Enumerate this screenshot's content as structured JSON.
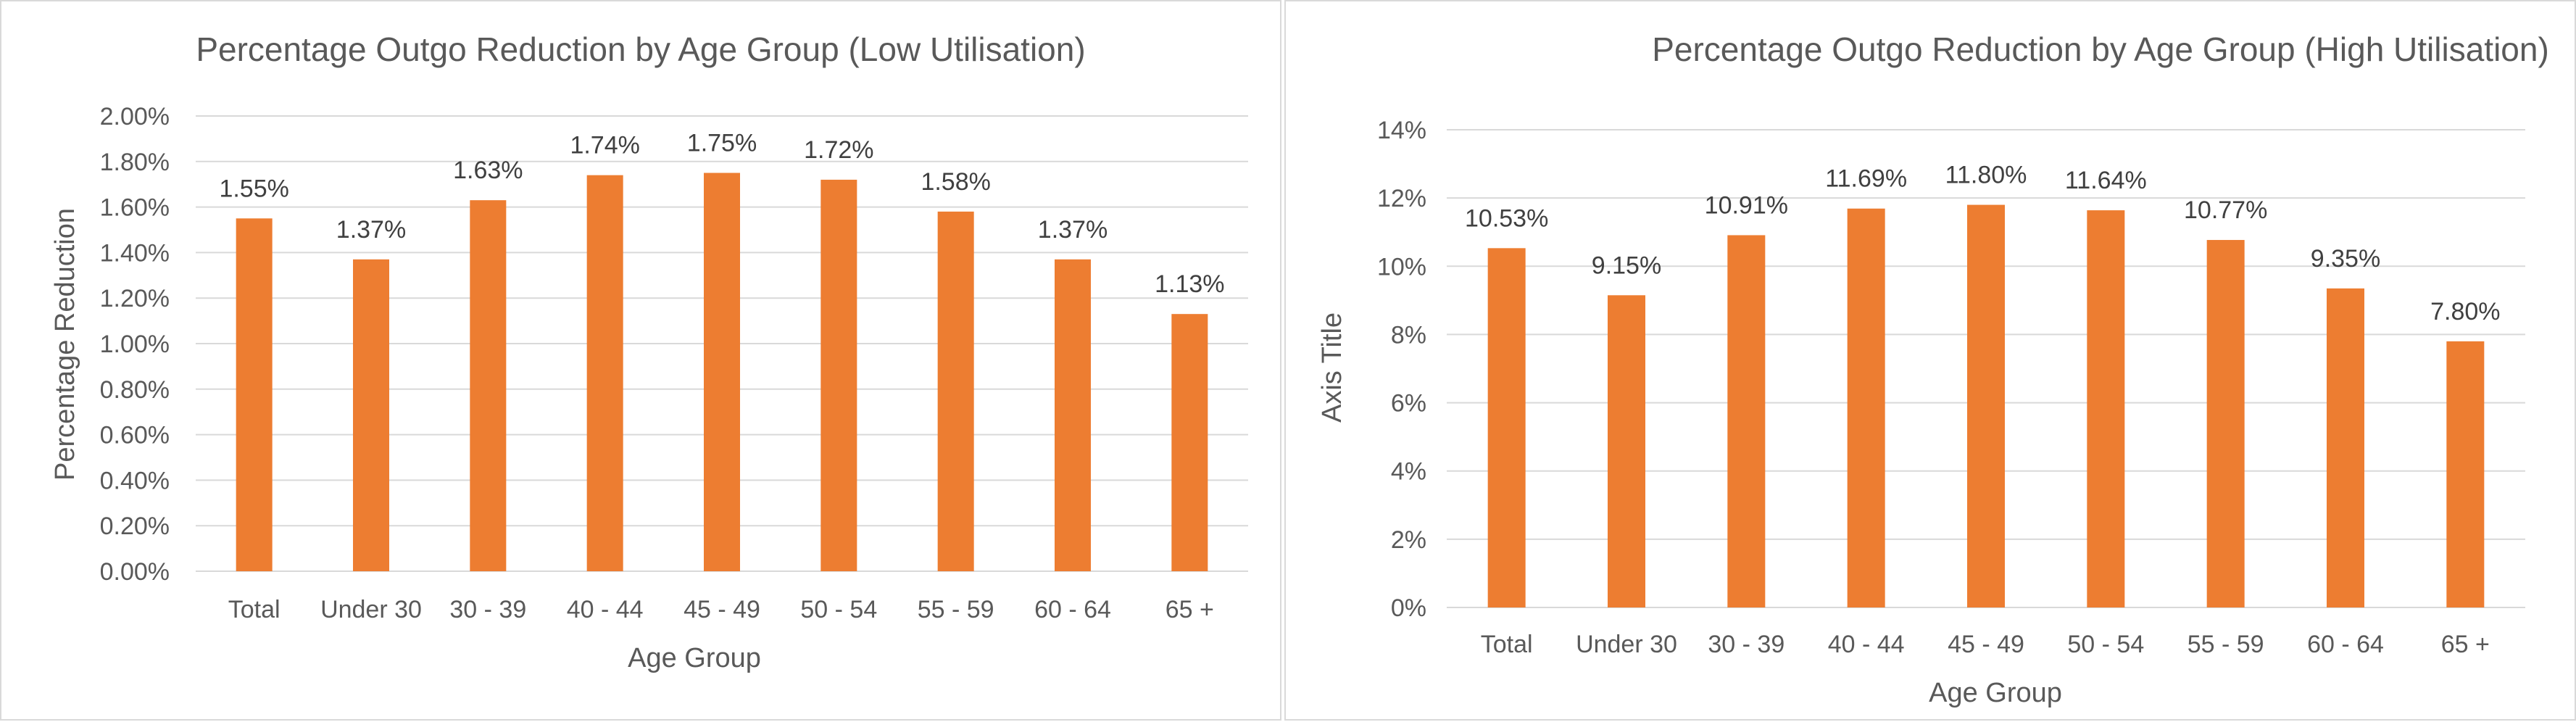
{
  "chart_data": [
    {
      "type": "bar",
      "title": "Percentage Outgo Reduction by Age Group (Low Utilisation)",
      "xlabel": "Age Group",
      "ylabel": "Percentage Reduction",
      "categories": [
        "Total",
        "Under 30",
        "30 - 39",
        "40 - 44",
        "45 - 49",
        "50 - 54",
        "55 - 59",
        "60 - 64",
        "65 +"
      ],
      "values": [
        1.55,
        1.37,
        1.63,
        1.74,
        1.75,
        1.72,
        1.58,
        1.37,
        1.13
      ],
      "data_labels": [
        "1.55%",
        "1.37%",
        "1.63%",
        "1.74%",
        "1.75%",
        "1.72%",
        "1.58%",
        "1.37%",
        "1.13%"
      ],
      "yticks": [
        "0.00%",
        "0.20%",
        "0.40%",
        "0.60%",
        "0.80%",
        "1.00%",
        "1.20%",
        "1.40%",
        "1.60%",
        "1.80%",
        "2.00%"
      ],
      "ylim": [
        0,
        2
      ],
      "grid": true,
      "bar_color": "#ED7D31",
      "grid_color": "#D9D9D9"
    },
    {
      "type": "bar",
      "title": "Percentage Outgo Reduction by Age Group (High Utilisation)",
      "xlabel": "Age Group",
      "ylabel": "Axis Title",
      "categories": [
        "Total",
        "Under 30",
        "30 - 39",
        "40 - 44",
        "45 - 49",
        "50 - 54",
        "55 - 59",
        "60 - 64",
        "65 +"
      ],
      "values": [
        10.53,
        9.15,
        10.91,
        11.69,
        11.8,
        11.64,
        10.77,
        9.35,
        7.8
      ],
      "data_labels": [
        "10.53%",
        "9.15%",
        "10.91%",
        "11.69%",
        "11.80%",
        "11.64%",
        "10.77%",
        "9.35%",
        "7.80%"
      ],
      "yticks": [
        "0%",
        "2%",
        "4%",
        "6%",
        "8%",
        "10%",
        "12%",
        "14%"
      ],
      "ylim": [
        0,
        14
      ],
      "grid": true,
      "bar_color": "#ED7D31",
      "grid_color": "#D9D9D9"
    }
  ]
}
